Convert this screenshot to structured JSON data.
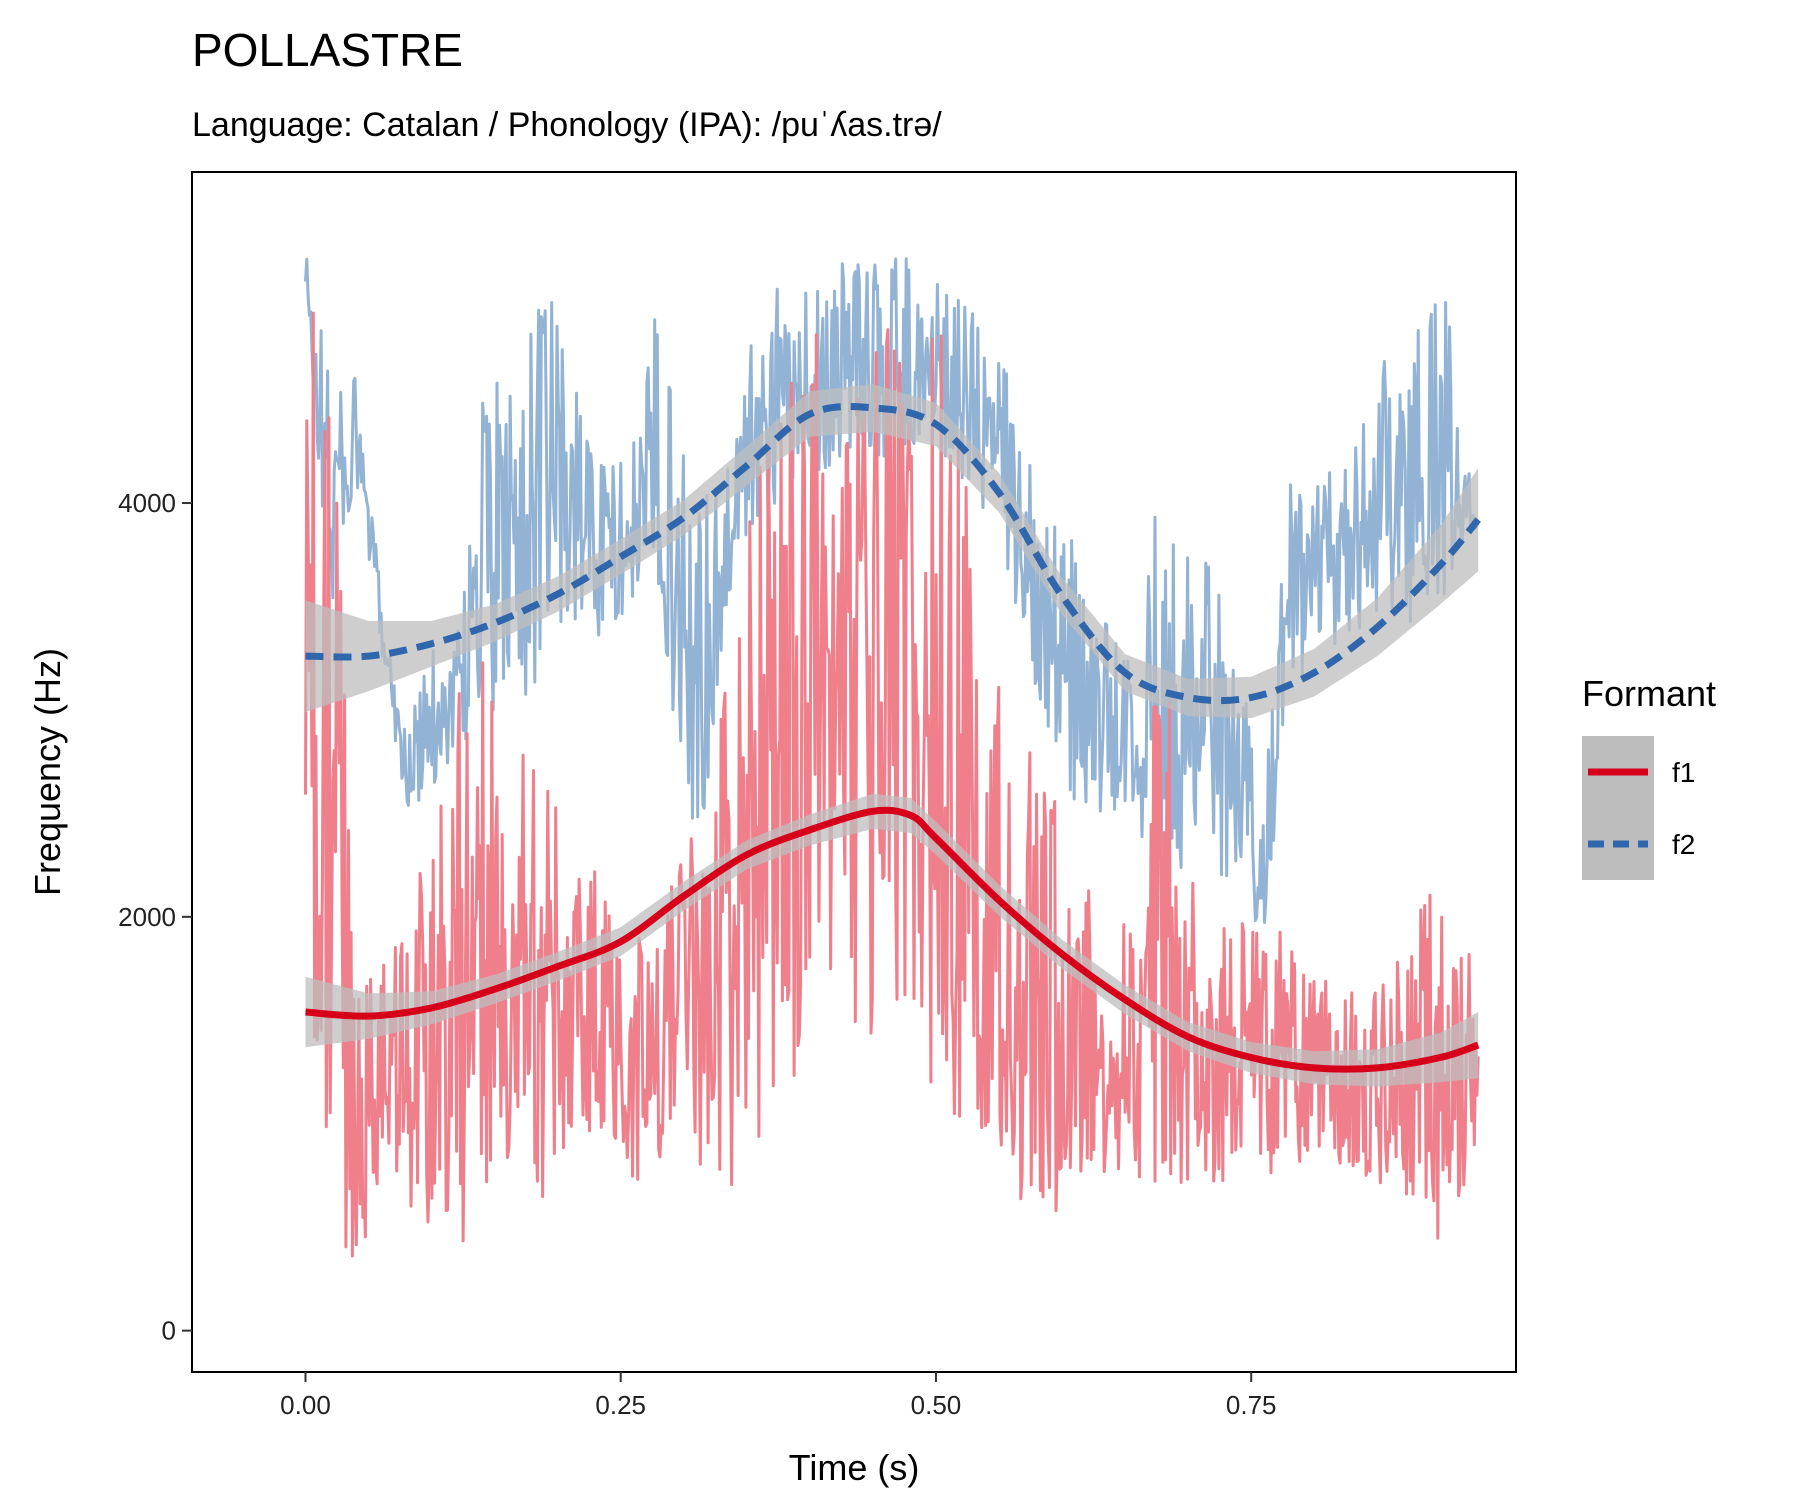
{
  "chart_data": {
    "type": "line",
    "title": "POLLASTRE",
    "subtitle": "Language: Catalan / Phonology (IPA): /puˈʎas.trə/",
    "xlabel": "Time (s)",
    "ylabel": "Frequency (Hz)",
    "xlim": [
      -0.09,
      0.96
    ],
    "ylim": [
      -200,
      5600
    ],
    "x_ticks": [
      0,
      0.25,
      0.5,
      0.75
    ],
    "x_tick_labels": [
      "0.00",
      "0.25",
      "0.50",
      "0.75"
    ],
    "y_ticks": [
      0,
      2000,
      4000
    ],
    "y_tick_labels": [
      "0",
      "2000",
      "4000"
    ],
    "grid": false,
    "legend": {
      "title": "Formant",
      "position": "right"
    },
    "colors": {
      "f1_raw": "#ee7f8b",
      "f1_smooth": "#d7001a",
      "f2_raw": "#93b3d5",
      "f2_smooth": "#2f66ac",
      "band": "#bdbdbd"
    },
    "series": [
      {
        "name": "f1",
        "raw": {
          "x": [
            0.0,
            0.02,
            0.04,
            0.06,
            0.08,
            0.1,
            0.12,
            0.14,
            0.16,
            0.18,
            0.2,
            0.22,
            0.24,
            0.26,
            0.28,
            0.3,
            0.32,
            0.34,
            0.36,
            0.38,
            0.4,
            0.42,
            0.44,
            0.46,
            0.48,
            0.5,
            0.52,
            0.54,
            0.56,
            0.58,
            0.6,
            0.62,
            0.64,
            0.66,
            0.68,
            0.7,
            0.72,
            0.74,
            0.76,
            0.78,
            0.8,
            0.82,
            0.84,
            0.86,
            0.88,
            0.9,
            0.93
          ],
          "y_min": [
            1600,
            400,
            350,
            600,
            600,
            500,
            300,
            700,
            700,
            500,
            800,
            900,
            900,
            700,
            800,
            900,
            700,
            700,
            900,
            1100,
            1200,
            1300,
            1400,
            1400,
            1300,
            1100,
            1000,
            900,
            700,
            500,
            500,
            700,
            800,
            700,
            700,
            700,
            700,
            700,
            700,
            800,
            800,
            800,
            700,
            700,
            600,
            400,
            800
          ],
          "y_max": [
            5000,
            4900,
            1600,
            1800,
            1900,
            2500,
            3200,
            3400,
            3000,
            2800,
            2600,
            2400,
            2100,
            2000,
            2000,
            2300,
            2700,
            3500,
            4200,
            4600,
            4800,
            4900,
            5000,
            5000,
            4900,
            5000,
            4400,
            3300,
            3000,
            2800,
            2600,
            2400,
            2200,
            2000,
            3800,
            2300,
            2100,
            2000,
            2000,
            1900,
            1700,
            1700,
            1600,
            1700,
            2000,
            2200,
            1700
          ]
        },
        "smooth": {
          "x": [
            0.0,
            0.05,
            0.1,
            0.15,
            0.2,
            0.25,
            0.3,
            0.35,
            0.4,
            0.45,
            0.48,
            0.5,
            0.55,
            0.6,
            0.65,
            0.7,
            0.75,
            0.8,
            0.85,
            0.9,
            0.93
          ],
          "y": [
            1540,
            1520,
            1560,
            1650,
            1760,
            1880,
            2100,
            2300,
            2420,
            2510,
            2490,
            2380,
            2080,
            1820,
            1600,
            1420,
            1320,
            1270,
            1270,
            1320,
            1380
          ],
          "band": [
            170,
            110,
            80,
            70,
            70,
            70,
            70,
            70,
            75,
            85,
            85,
            80,
            75,
            70,
            70,
            70,
            75,
            80,
            90,
            120,
            160
          ]
        }
      },
      {
        "name": "f2",
        "raw": {
          "x": [
            0.0,
            0.02,
            0.04,
            0.06,
            0.08,
            0.1,
            0.12,
            0.14,
            0.16,
            0.18,
            0.2,
            0.22,
            0.24,
            0.26,
            0.28,
            0.3,
            0.32,
            0.34,
            0.36,
            0.38,
            0.4,
            0.42,
            0.44,
            0.46,
            0.48,
            0.5,
            0.52,
            0.54,
            0.56,
            0.58,
            0.6,
            0.62,
            0.64,
            0.66,
            0.68,
            0.7,
            0.72,
            0.74,
            0.76,
            0.78,
            0.8,
            0.82,
            0.84,
            0.86,
            0.88,
            0.9,
            0.93
          ],
          "y_min": [
            4900,
            3400,
            4100,
            3300,
            2500,
            2600,
            2800,
            2900,
            3000,
            3100,
            3200,
            3300,
            3400,
            3500,
            3600,
            2500,
            2400,
            3800,
            3900,
            4000,
            4100,
            4200,
            4200,
            4200,
            4200,
            4300,
            4100,
            3900,
            3500,
            3100,
            2700,
            2400,
            2500,
            2400,
            2300,
            2200,
            2300,
            2000,
            1900,
            3100,
            3200,
            3300,
            3400,
            3500,
            3400,
            3500,
            3900
          ],
          "y_max": [
            5250,
            4700,
            4600,
            3600,
            2900,
            3300,
            3400,
            4600,
            4600,
            4900,
            5200,
            4600,
            4200,
            4300,
            5000,
            4500,
            4000,
            4300,
            5000,
            5100,
            5000,
            5100,
            5300,
            5200,
            5200,
            5100,
            5000,
            4900,
            4600,
            4300,
            3900,
            3700,
            3400,
            3200,
            4300,
            3900,
            3700,
            3300,
            2600,
            4100,
            4100,
            4200,
            4400,
            4800,
            4800,
            5200,
            3900
          ]
        },
        "smooth": {
          "x": [
            0.0,
            0.05,
            0.1,
            0.15,
            0.2,
            0.25,
            0.3,
            0.35,
            0.4,
            0.45,
            0.5,
            0.55,
            0.6,
            0.65,
            0.7,
            0.75,
            0.8,
            0.85,
            0.9,
            0.93
          ],
          "y": [
            3260,
            3260,
            3320,
            3420,
            3560,
            3740,
            3930,
            4180,
            4430,
            4460,
            4380,
            4050,
            3550,
            3180,
            3060,
            3060,
            3180,
            3400,
            3700,
            3920
          ],
          "band": [
            270,
            170,
            110,
            90,
            85,
            85,
            85,
            95,
            110,
            115,
            105,
            95,
            90,
            90,
            90,
            100,
            115,
            140,
            190,
            250
          ]
        }
      }
    ]
  }
}
